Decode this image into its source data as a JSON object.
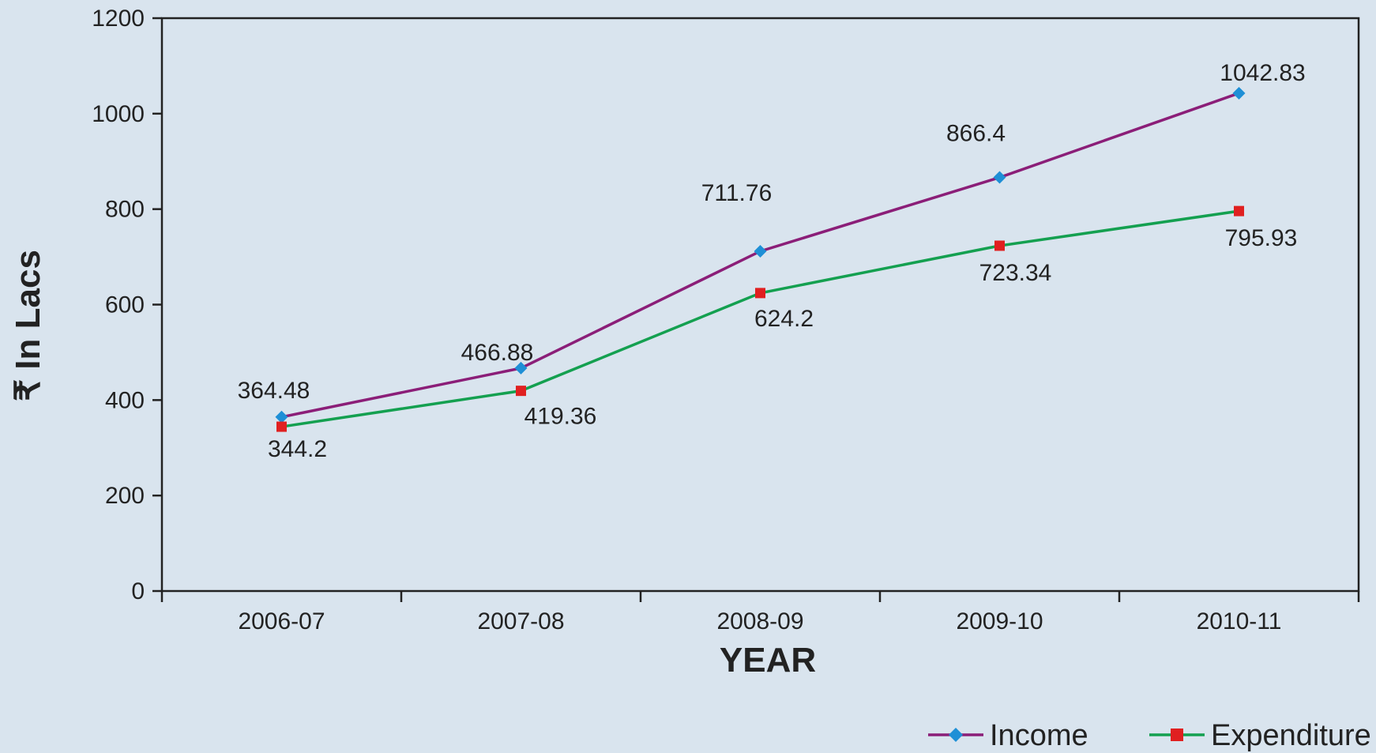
{
  "chart_data": {
    "type": "line",
    "categories": [
      "2006-07",
      "2007-08",
      "2008-09",
      "2009-10",
      "2010-11"
    ],
    "series": [
      {
        "name": "Income",
        "values": [
          364.48,
          466.88,
          711.76,
          866.4,
          1042.83
        ],
        "labels": [
          "364.48",
          "466.88",
          "711.76",
          "866.4",
          "1042.83"
        ],
        "color": "#8b1e78",
        "marker": "diamond",
        "marker_color": "#1e8fd6"
      },
      {
        "name": "Expenditure",
        "values": [
          344.2,
          419.36,
          624.2,
          723.34,
          795.93
        ],
        "labels": [
          "344.2",
          "419.36",
          "624.2",
          "723.34",
          "795.93"
        ],
        "color": "#14a050",
        "marker": "square",
        "marker_color": "#e02020"
      }
    ],
    "xlabel": "YEAR",
    "ylabel": "₹ In Lacs",
    "ylim": [
      0,
      1200
    ],
    "yticks": [
      "0",
      "200",
      "400",
      "600",
      "800",
      "1000",
      "1200"
    ],
    "grid": false,
    "legend_position": "bottom-right",
    "background_color": "#d9e4ee",
    "axis_color": "#222222"
  }
}
